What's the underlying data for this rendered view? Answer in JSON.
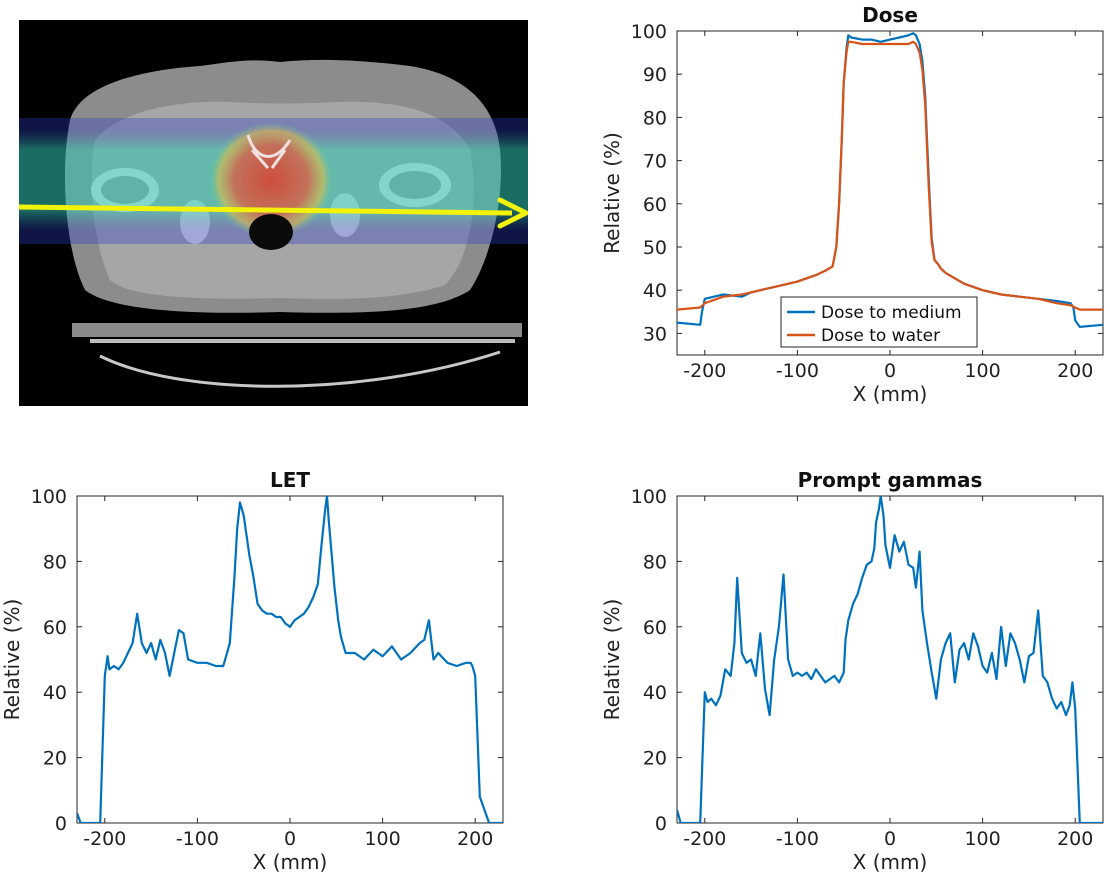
{
  "ct_image": {
    "description_icon": "ct-pelvis-image",
    "arrow_color": "#f2f20a"
  },
  "chart_data": [
    {
      "type": "line",
      "title": "Dose",
      "xlabel": "X (mm)",
      "ylabel": "Relative (%)",
      "xlim": [
        -230,
        230
      ],
      "ylim": [
        25,
        100
      ],
      "xticks": [
        -200,
        -100,
        0,
        100,
        200
      ],
      "yticks": [
        30,
        40,
        50,
        60,
        70,
        80,
        90,
        100
      ],
      "grid": false,
      "legend_position": "bottom-center",
      "series": [
        {
          "name": "Dose to medium",
          "color": "#0072bd",
          "x": [
            -230,
            -205,
            -203,
            -200,
            -180,
            -160,
            -150,
            -140,
            -120,
            -100,
            -80,
            -70,
            -62,
            -58,
            -55,
            -52,
            -50,
            -47,
            -45,
            -42,
            -30,
            -20,
            -10,
            0,
            10,
            20,
            25,
            28,
            32,
            35,
            38,
            40,
            42,
            45,
            48,
            52,
            55,
            60,
            80,
            100,
            120,
            140,
            160,
            180,
            195,
            198,
            200,
            205,
            230
          ],
          "y": [
            32.5,
            32,
            35,
            38,
            39,
            38.5,
            39.5,
            40,
            41,
            42,
            43.5,
            44.5,
            45.5,
            50,
            60,
            75,
            88,
            96,
            99,
            98.5,
            98,
            98,
            97.5,
            98,
            98.5,
            99,
            99.5,
            99,
            97,
            93,
            85,
            75,
            65,
            52,
            47,
            46,
            45,
            44,
            41.5,
            40,
            39,
            38.5,
            38,
            37.5,
            37,
            36,
            33,
            31.5,
            32
          ]
        },
        {
          "name": "Dose to water",
          "color": "#d95319",
          "x": [
            -230,
            -205,
            -200,
            -180,
            -160,
            -150,
            -140,
            -120,
            -100,
            -80,
            -70,
            -62,
            -58,
            -55,
            -52,
            -50,
            -47,
            -45,
            -42,
            -30,
            -20,
            -10,
            0,
            10,
            20,
            25,
            28,
            32,
            35,
            38,
            40,
            42,
            45,
            48,
            52,
            55,
            60,
            80,
            100,
            120,
            140,
            160,
            180,
            195,
            200,
            205,
            230
          ],
          "y": [
            35.5,
            36,
            37,
            38.5,
            39,
            39.5,
            40,
            41,
            42,
            43.5,
            44.5,
            45.5,
            50,
            60,
            75,
            88,
            95,
            97.5,
            97.5,
            97,
            97,
            97,
            97,
            97,
            97,
            97.5,
            97,
            95,
            91,
            83,
            73,
            63,
            51,
            47,
            46,
            45,
            44,
            41.5,
            40,
            39,
            38.5,
            38,
            37,
            36.5,
            36,
            35.5,
            35.5
          ]
        }
      ]
    },
    {
      "type": "line",
      "title": "LET",
      "xlabel": "X (mm)",
      "ylabel": "Relative (%)",
      "xlim": [
        -230,
        230
      ],
      "ylim": [
        0,
        100
      ],
      "xticks": [
        -200,
        -100,
        0,
        100,
        200
      ],
      "yticks": [
        0,
        20,
        40,
        60,
        80,
        100
      ],
      "grid": false,
      "series": [
        {
          "color": "#0072bd",
          "x": [
            -230,
            -226,
            -222,
            -210,
            -205,
            -200,
            -197,
            -195,
            -190,
            -185,
            -180,
            -175,
            -170,
            -165,
            -160,
            -155,
            -150,
            -145,
            -140,
            -135,
            -130,
            -125,
            -120,
            -115,
            -110,
            -100,
            -90,
            -80,
            -72,
            -65,
            -60,
            -57,
            -54,
            -50,
            -47,
            -44,
            -40,
            -35,
            -30,
            -25,
            -20,
            -15,
            -10,
            -5,
            0,
            5,
            10,
            15,
            20,
            25,
            30,
            34,
            38,
            40,
            42,
            45,
            48,
            52,
            55,
            60,
            70,
            80,
            90,
            100,
            110,
            120,
            130,
            140,
            145,
            150,
            155,
            160,
            170,
            180,
            190,
            195,
            197,
            200,
            205,
            215,
            230
          ],
          "y": [
            3,
            0,
            0,
            0,
            0,
            45,
            51,
            47,
            48,
            47,
            49,
            52,
            55,
            64,
            55,
            52,
            55,
            50,
            56,
            52,
            45,
            52,
            59,
            58,
            50,
            49,
            49,
            48,
            48,
            55,
            75,
            90,
            98,
            94,
            88,
            82,
            76,
            67,
            65,
            64,
            64,
            63,
            63,
            61,
            60,
            62,
            63,
            64,
            66,
            69,
            73,
            85,
            96,
            100,
            92,
            82,
            72,
            62,
            57,
            52,
            52,
            50,
            53,
            51,
            54,
            50,
            52,
            55,
            56,
            62,
            50,
            52,
            49,
            48,
            49,
            49,
            48,
            45,
            8,
            0,
            0
          ]
        }
      ]
    },
    {
      "type": "line",
      "title": "Prompt gammas",
      "xlabel": "X (mm)",
      "ylabel": "Relative (%)",
      "xlim": [
        -230,
        230
      ],
      "ylim": [
        0,
        100
      ],
      "xticks": [
        -200,
        -100,
        0,
        100,
        200
      ],
      "yticks": [
        0,
        20,
        40,
        60,
        80,
        100
      ],
      "grid": false,
      "series": [
        {
          "color": "#0072bd",
          "x": [
            -230,
            -226,
            -222,
            -210,
            -205,
            -200,
            -197,
            -193,
            -188,
            -183,
            -178,
            -172,
            -168,
            -165,
            -160,
            -155,
            -150,
            -145,
            -140,
            -135,
            -130,
            -125,
            -120,
            -115,
            -110,
            -105,
            -100,
            -95,
            -90,
            -85,
            -80,
            -70,
            -60,
            -55,
            -50,
            -48,
            -45,
            -40,
            -35,
            -30,
            -25,
            -20,
            -17,
            -15,
            -12,
            -10,
            -7,
            -5,
            0,
            5,
            10,
            15,
            20,
            25,
            28,
            32,
            35,
            40,
            45,
            50,
            55,
            60,
            65,
            70,
            75,
            80,
            85,
            90,
            95,
            100,
            105,
            110,
            115,
            120,
            125,
            130,
            135,
            140,
            145,
            150,
            155,
            160,
            165,
            170,
            175,
            180,
            185,
            190,
            194,
            197,
            200,
            205,
            215,
            230
          ],
          "y": [
            4,
            0,
            0,
            0,
            0,
            40,
            37,
            38,
            36,
            39,
            47,
            45,
            55,
            75,
            52,
            49,
            50,
            45,
            58,
            41,
            33,
            50,
            60,
            76,
            50,
            45,
            46,
            45,
            46,
            44,
            47,
            43,
            45,
            43,
            46,
            56,
            62,
            67,
            70,
            75,
            79,
            80,
            84,
            92,
            96,
            100,
            94,
            85,
            78,
            88,
            83,
            86,
            79,
            78,
            72,
            83,
            65,
            55,
            46,
            38,
            50,
            55,
            58,
            43,
            53,
            55,
            50,
            58,
            54,
            48,
            46,
            52,
            44,
            60,
            48,
            58,
            55,
            50,
            43,
            51,
            52,
            65,
            45,
            43,
            38,
            35,
            37,
            33,
            36,
            43,
            35,
            0,
            0,
            0
          ]
        }
      ]
    }
  ]
}
